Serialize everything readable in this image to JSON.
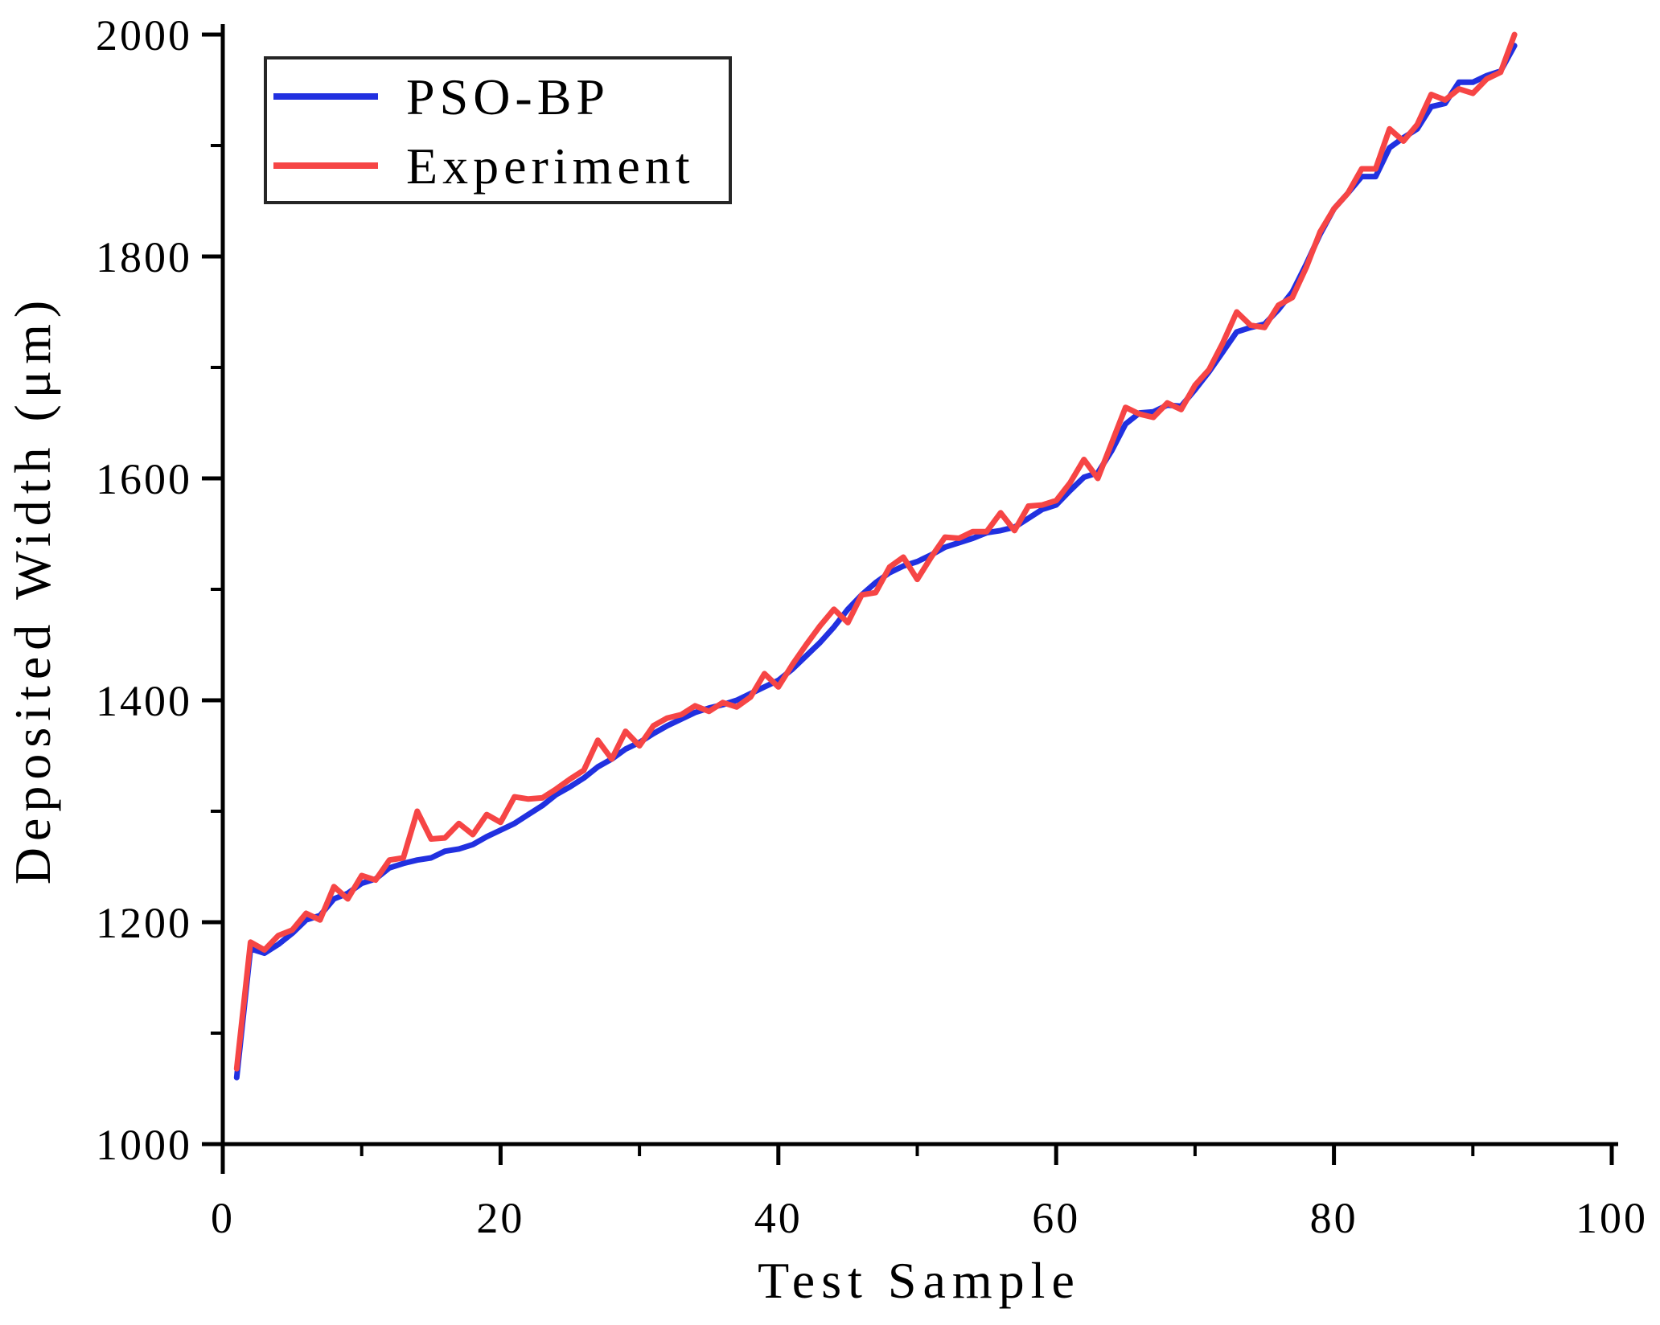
{
  "figure": {
    "background": "#ffffff"
  },
  "legend": {
    "position": "top-left",
    "border_color": "#262626",
    "entries": [
      {
        "label": "PSO-BP",
        "color": "#2130e0"
      },
      {
        "label": "Experiment",
        "color": "#f64545"
      }
    ]
  },
  "chart_data": {
    "type": "line",
    "title": "",
    "xlabel": "Test Sample",
    "ylabel": "Deposited Width (μm)",
    "xlim": [
      0,
      100
    ],
    "ylim": [
      1000,
      2000
    ],
    "grid": false,
    "legend_position": "upper-left",
    "x_major_ticks": [
      0,
      20,
      40,
      60,
      80,
      100
    ],
    "x_minor_ticks": [
      10,
      30,
      50,
      70,
      90
    ],
    "y_major_ticks": [
      1000,
      1200,
      1400,
      1600,
      1800,
      2000
    ],
    "y_minor_ticks": [
      1100,
      1300,
      1500,
      1700,
      1900
    ],
    "x": [
      1,
      2,
      3,
      4,
      5,
      6,
      7,
      8,
      9,
      10,
      11,
      12,
      13,
      14,
      15,
      16,
      17,
      18,
      19,
      20,
      21,
      22,
      23,
      24,
      25,
      26,
      27,
      28,
      29,
      30,
      31,
      32,
      33,
      34,
      35,
      36,
      37,
      38,
      39,
      40,
      41,
      42,
      43,
      44,
      45,
      46,
      47,
      48,
      49,
      50,
      51,
      52,
      53,
      54,
      55,
      56,
      57,
      58,
      59,
      60,
      61,
      62,
      63,
      64,
      65,
      66,
      67,
      68,
      69,
      70,
      71,
      72,
      73,
      74,
      75,
      76,
      77,
      78,
      79,
      80,
      81,
      82,
      83,
      84,
      85,
      86,
      87,
      88,
      89,
      90,
      91,
      92,
      93
    ],
    "series": [
      {
        "name": "PSO-BP",
        "color": "#2130e0",
        "values": [
          1060,
          1176,
          1172,
          1180,
          1190,
          1202,
          1206,
          1221,
          1226,
          1235,
          1239,
          1249,
          1253,
          1256,
          1258,
          1264,
          1266,
          1270,
          1277,
          1283,
          1289,
          1297,
          1305,
          1315,
          1322,
          1330,
          1340,
          1347,
          1356,
          1362,
          1370,
          1377,
          1383,
          1389,
          1393,
          1396,
          1400,
          1406,
          1412,
          1418,
          1428,
          1440,
          1452,
          1466,
          1482,
          1495,
          1506,
          1515,
          1521,
          1525,
          1531,
          1538,
          1542,
          1546,
          1551,
          1553,
          1556,
          1564,
          1572,
          1576,
          1589,
          1601,
          1605,
          1625,
          1649,
          1659,
          1660,
          1666,
          1665,
          1680,
          1696,
          1714,
          1732,
          1736,
          1739,
          1752,
          1768,
          1793,
          1820,
          1843,
          1857,
          1872,
          1872,
          1898,
          1907,
          1915,
          1935,
          1938,
          1957,
          1957,
          1963,
          1967,
          1990
        ]
      },
      {
        "name": "Experiment",
        "color": "#f64545",
        "values": [
          1068,
          1182,
          1175,
          1188,
          1193,
          1208,
          1202,
          1232,
          1221,
          1242,
          1238,
          1256,
          1258,
          1300,
          1275,
          1276,
          1289,
          1279,
          1297,
          1290,
          1313,
          1311,
          1312,
          1320,
          1329,
          1337,
          1364,
          1347,
          1372,
          1359,
          1377,
          1384,
          1387,
          1395,
          1390,
          1398,
          1394,
          1403,
          1424,
          1412,
          1432,
          1450,
          1467,
          1482,
          1470,
          1495,
          1497,
          1520,
          1529,
          1509,
          1529,
          1547,
          1546,
          1552,
          1552,
          1569,
          1553,
          1575,
          1576,
          1580,
          1596,
          1617,
          1600,
          1632,
          1664,
          1658,
          1655,
          1668,
          1662,
          1684,
          1698,
          1722,
          1750,
          1738,
          1736,
          1756,
          1763,
          1790,
          1822,
          1843,
          1857,
          1879,
          1879,
          1915,
          1904,
          1919,
          1946,
          1941,
          1951,
          1947,
          1960,
          1966,
          2000
        ]
      }
    ]
  }
}
